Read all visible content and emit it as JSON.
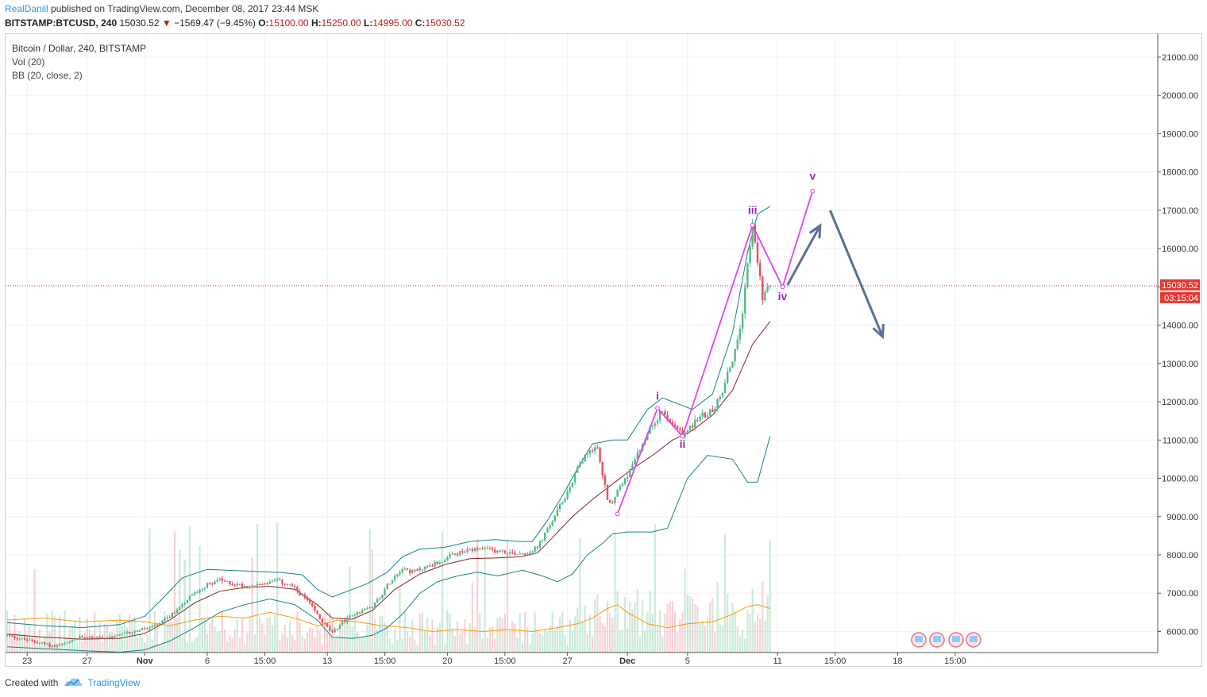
{
  "header": {
    "author": "RealDaniil",
    "published_text": "published on TradingView.com, December 08, 2017 23:44 MSK",
    "symbol": "BITSTAMP:BTCUSD, 240",
    "last": "15030.52",
    "change": "−1569.47 (−9.45%)",
    "o_label": "O:",
    "o_value": "15100.00",
    "h_label": "H:",
    "h_value": "15250.00",
    "l_label": "L:",
    "l_value": "14995.00",
    "c_label": "C:",
    "c_value": "15030.52"
  },
  "legend": {
    "title": "Bitcoin / Dollar, 240, BITSTAMP",
    "vol": "Vol (20)",
    "bb": "BB (20, close, 2)"
  },
  "footer": {
    "created_with": "Created with",
    "brand": "TradingView"
  },
  "price_tag": {
    "price": "15030.52",
    "countdown": "03:15:04"
  },
  "colors": {
    "up": "#53b987",
    "down": "#eb4d5c",
    "bb_band": "#138484",
    "bb_basis": "#872323",
    "vol_ma": "#ff9800",
    "wave": "#e040fb",
    "wave_label": "#9c27b0",
    "arrow": "#5b6f95",
    "price_line": "#e53935"
  },
  "chart_data": {
    "type": "candlestick",
    "symbol": "BTCUSD",
    "interval": "240",
    "exchange": "BITSTAMP",
    "y_axis": {
      "ylim": [
        5450,
        21600
      ],
      "ticks": [
        "21000.00",
        "20000.00",
        "19000.00",
        "18000.00",
        "17000.00",
        "16000.00",
        "15000.00",
        "14000.00",
        "13000.00",
        "12000.00",
        "11000.00",
        "10000.00",
        "9000.00",
        "8000.00",
        "7000.00",
        "6000.00"
      ]
    },
    "x_axis": {
      "tick_labels": [
        {
          "label": "23",
          "bold": false,
          "i": 8
        },
        {
          "label": "27",
          "bold": false,
          "i": 32
        },
        {
          "label": "Nov",
          "bold": true,
          "i": 55
        },
        {
          "label": "6",
          "bold": false,
          "i": 80
        },
        {
          "label": "15:00",
          "bold": false,
          "i": 103
        },
        {
          "label": "13",
          "bold": false,
          "i": 128
        },
        {
          "label": "15:00",
          "bold": false,
          "i": 151
        },
        {
          "label": "20",
          "bold": false,
          "i": 176
        },
        {
          "label": "15:00",
          "bold": false,
          "i": 199
        },
        {
          "label": "27",
          "bold": false,
          "i": 224
        },
        {
          "label": "Dec",
          "bold": true,
          "i": 248
        },
        {
          "label": "5",
          "bold": false,
          "i": 272
        },
        {
          "label": "11",
          "bold": false,
          "i": 308
        },
        {
          "label": "15:00",
          "bold": false,
          "i": 331
        },
        {
          "label": "18",
          "bold": false,
          "i": 356
        },
        {
          "label": "15:00",
          "bold": false,
          "i": 379
        }
      ]
    },
    "price_trend": [
      [
        0,
        5900
      ],
      [
        6,
        5800
      ],
      [
        12,
        5720
      ],
      [
        18,
        5620
      ],
      [
        24,
        5680
      ],
      [
        30,
        5870
      ],
      [
        36,
        5840
      ],
      [
        42,
        5830
      ],
      [
        48,
        5960
      ],
      [
        54,
        6050
      ],
      [
        60,
        6150
      ],
      [
        66,
        6450
      ],
      [
        72,
        6850
      ],
      [
        78,
        7150
      ],
      [
        84,
        7350
      ],
      [
        90,
        7250
      ],
      [
        96,
        7180
      ],
      [
        102,
        7250
      ],
      [
        108,
        7320
      ],
      [
        114,
        7180
      ],
      [
        120,
        6800
      ],
      [
        126,
        6250
      ],
      [
        130,
        5950
      ],
      [
        134,
        6250
      ],
      [
        140,
        6500
      ],
      [
        146,
        6650
      ],
      [
        150,
        7000
      ],
      [
        154,
        7400
      ],
      [
        158,
        7650
      ],
      [
        162,
        7550
      ],
      [
        168,
        7700
      ],
      [
        174,
        7850
      ],
      [
        178,
        8000
      ],
      [
        184,
        8100
      ],
      [
        190,
        8150
      ],
      [
        196,
        8100
      ],
      [
        202,
        8050
      ],
      [
        208,
        8050
      ],
      [
        212,
        8200
      ],
      [
        216,
        8650
      ],
      [
        220,
        9150
      ],
      [
        224,
        9650
      ],
      [
        228,
        10250
      ],
      [
        232,
        10700
      ],
      [
        236,
        10800
      ],
      [
        238,
        10050
      ],
      [
        240,
        9500
      ],
      [
        242,
        9300
      ],
      [
        244,
        9700
      ],
      [
        246,
        9900
      ],
      [
        250,
        10300
      ],
      [
        254,
        10900
      ],
      [
        258,
        11400
      ],
      [
        262,
        11750
      ],
      [
        264,
        11500
      ],
      [
        268,
        11250
      ],
      [
        270,
        11100
      ],
      [
        274,
        11400
      ],
      [
        278,
        11650
      ],
      [
        282,
        11750
      ],
      [
        286,
        12300
      ],
      [
        290,
        13100
      ],
      [
        294,
        14300
      ],
      [
        296,
        15700
      ],
      [
        298,
        16550
      ],
      [
        300,
        15700
      ],
      [
        302,
        14700
      ],
      [
        304,
        15100
      ],
      [
        305,
        15030
      ]
    ],
    "bb_upper": [
      [
        0,
        6230
      ],
      [
        15,
        6150
      ],
      [
        30,
        6100
      ],
      [
        45,
        6180
      ],
      [
        55,
        6400
      ],
      [
        62,
        6850
      ],
      [
        70,
        7400
      ],
      [
        80,
        7620
      ],
      [
        95,
        7580
      ],
      [
        110,
        7540
      ],
      [
        118,
        7480
      ],
      [
        124,
        7100
      ],
      [
        130,
        6900
      ],
      [
        136,
        7050
      ],
      [
        144,
        7250
      ],
      [
        152,
        7550
      ],
      [
        158,
        7950
      ],
      [
        165,
        8150
      ],
      [
        175,
        8200
      ],
      [
        185,
        8350
      ],
      [
        195,
        8400
      ],
      [
        205,
        8350
      ],
      [
        210,
        8350
      ],
      [
        216,
        8900
      ],
      [
        222,
        9550
      ],
      [
        228,
        10250
      ],
      [
        234,
        10900
      ],
      [
        242,
        11000
      ],
      [
        248,
        11000
      ],
      [
        256,
        11800
      ],
      [
        262,
        12100
      ],
      [
        268,
        11950
      ],
      [
        274,
        11800
      ],
      [
        282,
        12200
      ],
      [
        290,
        13800
      ],
      [
        296,
        15900
      ],
      [
        300,
        16900
      ],
      [
        305,
        17100
      ]
    ],
    "bb_basis": [
      [
        0,
        5930
      ],
      [
        15,
        5850
      ],
      [
        30,
        5800
      ],
      [
        45,
        5820
      ],
      [
        55,
        5950
      ],
      [
        65,
        6300
      ],
      [
        75,
        6750
      ],
      [
        85,
        7050
      ],
      [
        95,
        7150
      ],
      [
        105,
        7180
      ],
      [
        115,
        7100
      ],
      [
        124,
        6700
      ],
      [
        130,
        6350
      ],
      [
        138,
        6320
      ],
      [
        146,
        6550
      ],
      [
        155,
        7100
      ],
      [
        165,
        7500
      ],
      [
        175,
        7750
      ],
      [
        185,
        7900
      ],
      [
        195,
        7920
      ],
      [
        205,
        7950
      ],
      [
        212,
        8050
      ],
      [
        218,
        8450
      ],
      [
        226,
        9000
      ],
      [
        234,
        9450
      ],
      [
        242,
        9850
      ],
      [
        250,
        10250
      ],
      [
        258,
        10600
      ],
      [
        266,
        11000
      ],
      [
        274,
        11250
      ],
      [
        282,
        11650
      ],
      [
        290,
        12300
      ],
      [
        298,
        13500
      ],
      [
        305,
        14100
      ]
    ],
    "bb_lower": [
      [
        0,
        5600
      ],
      [
        15,
        5550
      ],
      [
        30,
        5500
      ],
      [
        45,
        5460
      ],
      [
        55,
        5520
      ],
      [
        65,
        5750
      ],
      [
        75,
        6100
      ],
      [
        85,
        6500
      ],
      [
        95,
        6700
      ],
      [
        105,
        6850
      ],
      [
        115,
        6700
      ],
      [
        124,
        6300
      ],
      [
        130,
        5850
      ],
      [
        138,
        5820
      ],
      [
        146,
        5900
      ],
      [
        152,
        6100
      ],
      [
        158,
        6450
      ],
      [
        165,
        7000
      ],
      [
        172,
        7300
      ],
      [
        180,
        7450
      ],
      [
        188,
        7550
      ],
      [
        196,
        7450
      ],
      [
        206,
        7600
      ],
      [
        214,
        7450
      ],
      [
        220,
        7300
      ],
      [
        226,
        7500
      ],
      [
        232,
        8000
      ],
      [
        238,
        8300
      ],
      [
        242,
        8550
      ],
      [
        248,
        8600
      ],
      [
        258,
        8600
      ],
      [
        264,
        8700
      ],
      [
        272,
        10000
      ],
      [
        280,
        10600
      ],
      [
        290,
        10500
      ],
      [
        296,
        9900
      ],
      [
        300,
        9900
      ],
      [
        305,
        11100
      ]
    ],
    "vol_ma": [
      [
        0,
        6300
      ],
      [
        15,
        6350
      ],
      [
        30,
        6250
      ],
      [
        45,
        6300
      ],
      [
        55,
        6250
      ],
      [
        65,
        6150
      ],
      [
        75,
        6300
      ],
      [
        85,
        6400
      ],
      [
        95,
        6350
      ],
      [
        105,
        6500
      ],
      [
        115,
        6350
      ],
      [
        124,
        6150
      ],
      [
        132,
        6300
      ],
      [
        140,
        6250
      ],
      [
        150,
        6150
      ],
      [
        160,
        6100
      ],
      [
        170,
        6000
      ],
      [
        180,
        6050
      ],
      [
        190,
        6000
      ],
      [
        200,
        6050
      ],
      [
        210,
        6000
      ],
      [
        220,
        6100
      ],
      [
        228,
        6200
      ],
      [
        234,
        6350
      ],
      [
        240,
        6600
      ],
      [
        244,
        6700
      ],
      [
        248,
        6500
      ],
      [
        256,
        6200
      ],
      [
        264,
        6100
      ],
      [
        272,
        6200
      ],
      [
        282,
        6250
      ],
      [
        290,
        6450
      ],
      [
        296,
        6650
      ],
      [
        300,
        6700
      ],
      [
        305,
        6600
      ]
    ],
    "annotations": {
      "wave_points": [
        [
          244,
          9070
        ],
        [
          260,
          11830
        ],
        [
          270,
          11100
        ],
        [
          298,
          16610
        ],
        [
          310,
          15000
        ],
        [
          322,
          17500
        ]
      ],
      "wave_labels": [
        {
          "text": "i",
          "i": 260,
          "price": 12050
        },
        {
          "text": "ii",
          "i": 270,
          "price": 10800
        },
        {
          "text": "iii",
          "i": 298,
          "price": 16900
        },
        {
          "text": "iv",
          "i": 310,
          "price": 14650
        },
        {
          "text": "v",
          "i": 322,
          "price": 17800
        }
      ],
      "arrows": [
        {
          "from": [
            312,
            15050
          ],
          "to": [
            325,
            16600
          ]
        },
        {
          "from": [
            329,
            17000
          ],
          "to": [
            350,
            13700
          ]
        }
      ]
    }
  }
}
